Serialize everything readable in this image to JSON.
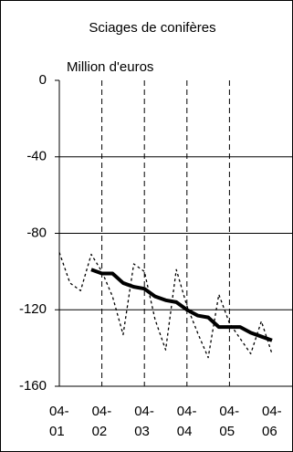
{
  "chart_data": {
    "type": "line",
    "title": "Sciages de conifères",
    "subtitle": "Million d'euros",
    "categories": [
      "04-01",
      null,
      null,
      null,
      "04-02",
      null,
      null,
      null,
      "04-03",
      null,
      null,
      null,
      "04-04",
      null,
      null,
      null,
      "04-05",
      null,
      null,
      null,
      "04-06"
    ],
    "series": [
      {
        "color": "#000000",
        "style": "dashed",
        "values": [
          -90,
          -106,
          -110,
          -91,
          -100,
          -113,
          -133,
          -96,
          -100,
          -125,
          -141,
          -99,
          -118,
          -132,
          -145,
          -112,
          -127,
          -135,
          -143,
          -126,
          -143
        ]
      },
      {
        "color": "#000000",
        "style": "solid",
        "values": [
          null,
          null,
          null,
          -99,
          -101,
          -101,
          -106,
          -108,
          -109,
          -113,
          -115,
          -116,
          -120,
          -123,
          -124,
          -129,
          -129,
          -129,
          -132,
          -134,
          -136
        ]
      }
    ],
    "ylim": [
      -160,
      0
    ],
    "yticks": [
      0,
      -40,
      -80,
      -120,
      -160
    ],
    "grid": true
  }
}
